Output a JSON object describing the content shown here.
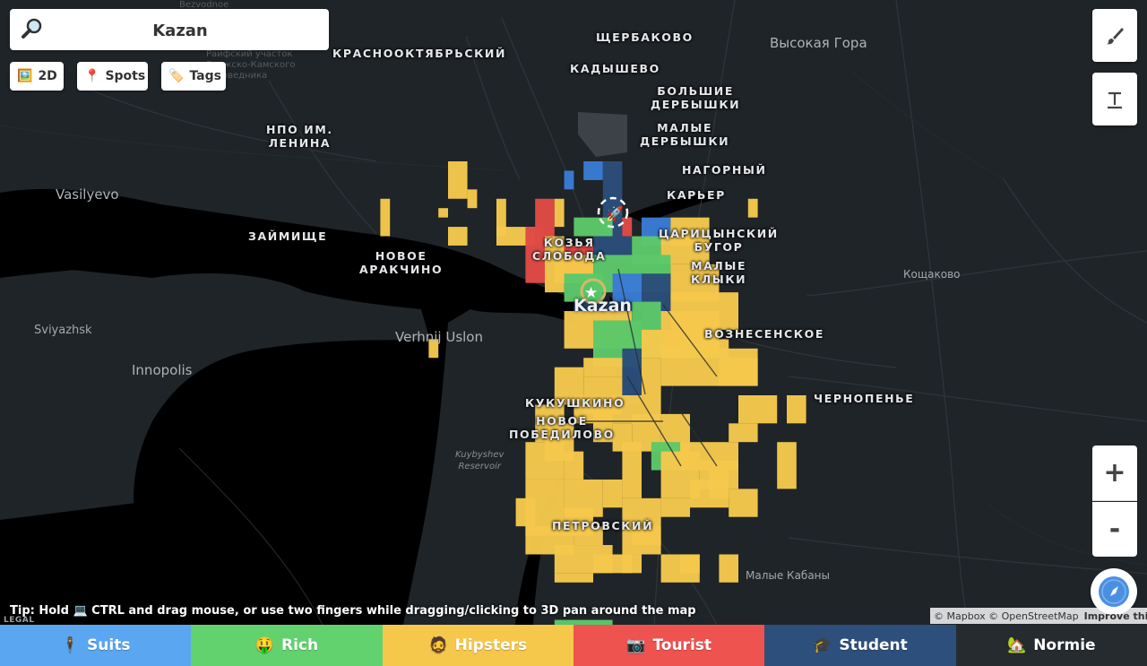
{
  "search": {
    "value": "Kazan"
  },
  "toggles": [
    {
      "label": "2D",
      "icon": "picture-icon"
    },
    {
      "label": "Spots",
      "icon": "pin-icon"
    },
    {
      "label": "Tags",
      "icon": "tag-icon"
    }
  ],
  "map": {
    "city_label": "Kazan",
    "districts": [
      "ЩЕРБАКОВО",
      "КРАСНООКТЯБРЬСКИЙ",
      "КАДЫШЕВО",
      "БОЛЬШИЕ\nДЕРБЫШКИ",
      "МАЛЫЕ\nДЕРБЫШКИ",
      "НПО ИМ.\nЛЕНИНА",
      "НАГОРНЫЙ",
      "КАРЬЕР",
      "ЗАЙМИЩЕ",
      "НОВОЕ\nАРАКЧИНО",
      "КОЗЬЯ\nСЛОБОДА",
      "ЦАРИЦЫНСКИЙ\nБУГОР",
      "МАЛЫЕ\nКЛЫКИ",
      "ВОЗНЕСЕНСКОЕ",
      "КУКУШКИНО",
      "НОВОЕ\nПОБЕДИЛОВО",
      "ЧЕРНОПЕНЬЕ",
      "ПЕТРОВСКИЙ"
    ],
    "places": [
      "Высокая Гора",
      "Vasilyevo",
      "Verhnij Uslon",
      "Sviyazhsk",
      "Innopolis",
      "Кощаково",
      "Малые Кабаны"
    ],
    "water_label": "Kuybyshev\nReservoir",
    "faint_labels": [
      "Bezvodnoe",
      "Раифский участок\nВолжско-Камского\nзаповедника"
    ]
  },
  "tip": "Tip: Hold 💻 CTRL and drag mouse, or use two fingers while dragging/clicking to 3D pan around the map",
  "legal": "LEGAL",
  "attribution": {
    "text": "© Mapbox © OpenStreetMap",
    "link": "Improve this map"
  },
  "zoom": {
    "in": "+",
    "out": "-"
  },
  "categories": [
    {
      "label": "Suits",
      "emoji": "🕴",
      "color": "#5aa6f0"
    },
    {
      "label": "Rich",
      "emoji": "🤑",
      "color": "#62d26f"
    },
    {
      "label": "Hipsters",
      "emoji": "🧔",
      "color": "#f5c84c"
    },
    {
      "label": "Tourist",
      "emoji": "📷",
      "color": "#ef5350"
    },
    {
      "label": "Student",
      "emoji": "🎓",
      "color": "#2d4f7c"
    },
    {
      "label": "Normie",
      "emoji": "🏡",
      "color": "#262b2f"
    }
  ],
  "overlay": {
    "map_water": "#000000",
    "map_land": "#1f2428",
    "grid_colors": {
      "hipster": "#f5c84c",
      "rich": "#5cc869",
      "suits": "#3a7bd5",
      "tourist": "#e04a45",
      "student": "#2a4d7a"
    }
  }
}
